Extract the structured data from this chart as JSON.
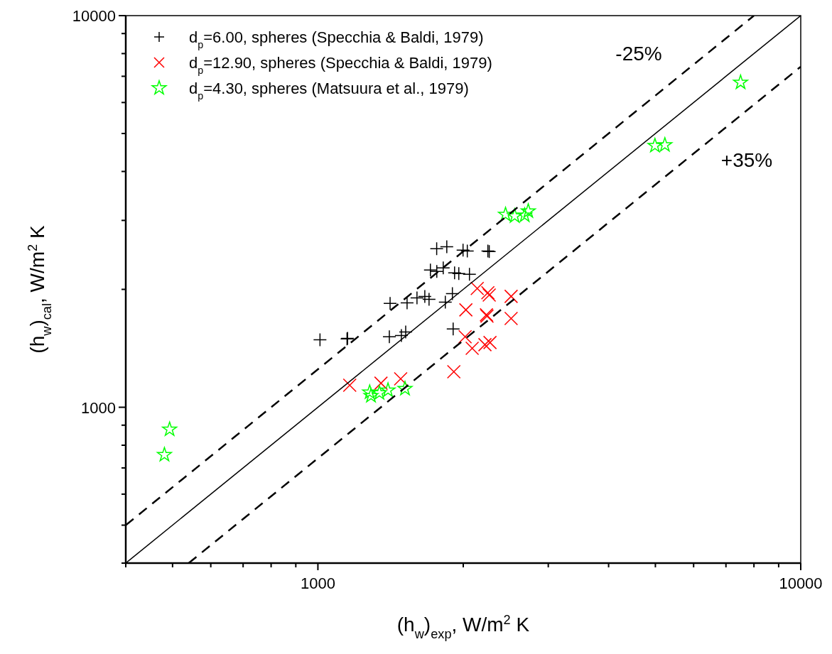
{
  "chart_data": {
    "type": "scatter",
    "xlabel": "(h$_{w}$)$_{exp}$, W/m$^{2}$ K",
    "ylabel": "(h$_{w}$)$_{cal}$, W/m$^{2}$ K",
    "log": "xy",
    "xlim": [
      400,
      10000
    ],
    "ylim": [
      400,
      10000
    ],
    "xticks": [
      {
        "value": 400,
        "label": null
      },
      {
        "value": 500,
        "label": null
      },
      {
        "value": 600,
        "label": null
      },
      {
        "value": 700,
        "label": null
      },
      {
        "value": 800,
        "label": null
      },
      {
        "value": 900,
        "label": null
      },
      1000,
      {
        "value": 2000,
        "label": null
      },
      {
        "value": 3000,
        "label": null
      },
      {
        "value": 4000,
        "label": null
      },
      {
        "value": 5000,
        "label": null
      },
      {
        "value": 6000,
        "label": null
      },
      {
        "value": 7000,
        "label": null
      },
      {
        "value": 8000,
        "label": null
      },
      {
        "value": 9000,
        "label": null
      },
      10000
    ],
    "yticks": [
      {
        "value": 400,
        "label": null
      },
      {
        "value": 500,
        "label": null
      },
      {
        "value": 600,
        "label": null
      },
      {
        "value": 700,
        "label": null
      },
      {
        "value": 800,
        "label": null
      },
      {
        "value": 900,
        "label": null
      },
      1000,
      {
        "value": 2000,
        "label": null
      },
      {
        "value": 3000,
        "label": null
      },
      {
        "value": 4000,
        "label": null
      },
      {
        "value": 5000,
        "label": null
      },
      {
        "value": 6000,
        "label": null
      },
      {
        "value": 7000,
        "label": null
      },
      {
        "value": 8000,
        "label": null
      },
      {
        "value": 9000,
        "label": null
      },
      10000
    ],
    "grid": false,
    "legend": "top left",
    "annotations": [
      "-25%",
      "+35%"
    ],
    "series": [
      {
        "name": "d$_{p}$=6.00,  spheres (Specchia & Baldi, 1979)",
        "color": "#000000",
        "marker": "cross",
        "x": [
          1762,
          1849,
          1998,
          2039,
          2264,
          2249,
          1710,
          1763,
          1818,
          1919,
          1958,
          2060,
          1899,
          1836,
          1665,
          1699,
          1604,
          1530,
          1411,
          1906,
          1520,
          1489,
          1406,
          1152,
          1149,
          1010
        ],
        "values": [
          2539,
          2570,
          2518,
          2507,
          2497,
          2507,
          2240,
          2222,
          2269,
          2203,
          2194,
          2185,
          1951,
          1856,
          1919,
          1887,
          1903,
          1848,
          1841,
          1584,
          1557,
          1525,
          1513,
          1500,
          1494,
          1487
        ]
      },
      {
        "name": "d$_{p}$=12.90, spheres (Specchia & Baldi, 1979)",
        "color": "#ff0000",
        "marker": "x",
        "x": [
          2138,
          2249,
          2264,
          2513,
          2025,
          2234,
          2240,
          2513,
          2018,
          2087,
          2218,
          2272,
          1912,
          1164,
          1351,
          1484
        ],
        "values": [
          2010,
          1960,
          1935,
          1919,
          1773,
          1722,
          1708,
          1686,
          1513,
          1414,
          1445,
          1463,
          1232,
          1138,
          1152,
          1182
        ]
      },
      {
        "name": "d$_{p}$=4.30,  spheres (Matsuura et al., 1979)",
        "color": "#00ff00",
        "marker": "star",
        "x": [
          493,
          481,
          1280,
          1288,
          1341,
          1397,
          1515,
          2447,
          2556,
          2681,
          2727,
          4989,
          5231,
          7506
        ],
        "values": [
          878,
          756,
          1092,
          1069,
          1087,
          1105,
          1115,
          3103,
          3077,
          3090,
          3168,
          4655,
          4674,
          6752
        ]
      },
      {
        "type": "line",
        "color": "#000000",
        "marker": "none",
        "line_style": "solid",
        "x": [
          400,
          10000
        ],
        "values": [
          400,
          10000
        ]
      },
      {
        "type": "line",
        "color": "#000000",
        "marker": "none",
        "line_style": "dashed",
        "x": [
          400,
          8000
        ],
        "values": [
          500,
          10000
        ]
      },
      {
        "type": "line",
        "color": "#000000",
        "marker": "none",
        "line_style": "dashed",
        "x": [
          540,
          10000
        ],
        "values": [
          400,
          7407
        ]
      }
    ]
  }
}
